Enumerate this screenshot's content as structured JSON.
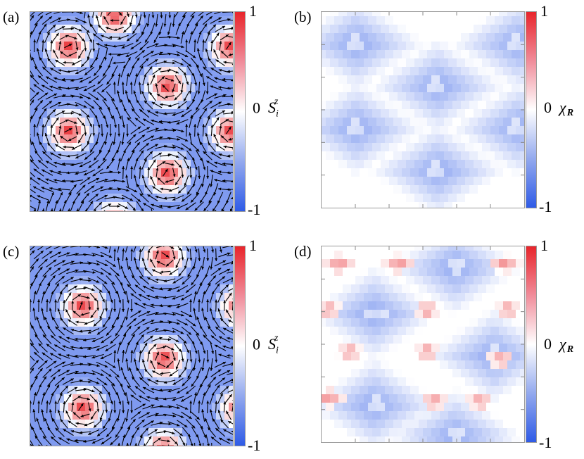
{
  "panels": [
    {
      "label": "(a)",
      "kind": "spin",
      "field_name": "S",
      "field_sub": "i",
      "field_sup": "z",
      "colorbar": {
        "max": "1",
        "mid": "0",
        "min": "-1"
      }
    },
    {
      "label": "(b)",
      "kind": "chirality",
      "field_name": "χ",
      "field_sub": "R",
      "colorbar": {
        "max": "1",
        "mid": "0",
        "min": "-1"
      }
    },
    {
      "label": "(c)",
      "kind": "spin",
      "field_name": "S",
      "field_sub": "i",
      "field_sup": "z",
      "colorbar": {
        "max": "1",
        "mid": "0",
        "min": "-1"
      }
    },
    {
      "label": "(d)",
      "kind": "chirality",
      "field_name": "χ",
      "field_sub": "R",
      "colorbar": {
        "max": "1",
        "mid": "0",
        "min": "-1"
      }
    }
  ],
  "colors": {
    "positive": "#e8252b",
    "zero": "#ffffff",
    "negative": "#2f5be6",
    "arrow": "#000000"
  },
  "colorbar_range": [
    -1,
    1
  ]
}
